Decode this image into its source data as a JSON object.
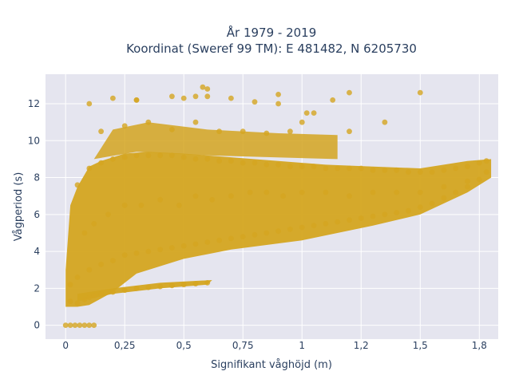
{
  "chart_data": {
    "type": "scatter",
    "title": "År 1979 - 2019",
    "subtitle": "Koordinat (Sweref 99 TM): E 481482, N 6205730",
    "xlabel": "Signifikant våghöjd (m)",
    "ylabel": "Vågperiod (s)",
    "xlim": [
      -0.085,
      1.83
    ],
    "ylim": [
      -0.75,
      13.6
    ],
    "x_ticks": [
      0,
      0.25,
      0.5,
      0.75,
      1,
      1.25,
      1.5,
      1.75
    ],
    "x_tick_labels": [
      "0",
      "0,25",
      "0,5",
      "0,75",
      "1",
      "1,2",
      "1,5",
      "1,8"
    ],
    "y_ticks": [
      0,
      2,
      4,
      6,
      8,
      10,
      12
    ],
    "y_tick_labels": [
      "0",
      "2",
      "4",
      "6",
      "8",
      "10",
      "12"
    ],
    "grid": true,
    "series": [
      {
        "color": "#d4a520",
        "x": [
          0.0,
          0.02,
          0.04,
          0.06,
          0.08,
          0.1,
          0.12,
          0.02,
          0.05,
          0.08,
          0.1,
          0.12,
          0.15,
          0.2,
          0.25,
          0.3,
          0.35,
          0.4,
          0.45,
          0.5,
          0.55,
          0.6,
          0.02,
          0.05,
          0.1,
          0.15,
          0.2,
          0.25,
          0.3,
          0.35,
          0.4,
          0.45,
          0.5,
          0.55,
          0.6,
          0.65,
          0.7,
          0.75,
          0.8,
          0.85,
          0.9,
          0.95,
          1.0,
          1.05,
          1.1,
          1.15,
          1.2,
          1.25,
          1.3,
          1.35,
          1.4,
          1.45,
          1.5,
          1.55,
          1.6,
          1.65,
          1.7,
          1.75,
          1.78,
          0.05,
          0.1,
          0.15,
          0.2,
          0.25,
          0.3,
          0.35,
          0.4,
          0.45,
          0.5,
          0.55,
          0.6,
          0.65,
          0.7,
          0.75,
          0.8,
          0.85,
          0.9,
          0.95,
          1.0,
          1.05,
          1.1,
          1.15,
          1.2,
          1.25,
          1.3,
          1.35,
          1.4,
          1.45,
          1.5,
          1.55,
          1.6,
          1.65,
          1.7,
          1.75,
          1.78,
          0.08,
          0.12,
          0.18,
          0.25,
          0.32,
          0.4,
          0.48,
          0.55,
          0.62,
          0.7,
          0.78,
          0.85,
          0.92,
          1.0,
          1.1,
          1.2,
          1.3,
          1.4,
          1.5,
          1.6,
          1.7,
          0.15,
          0.25,
          0.35,
          0.45,
          0.55,
          0.65,
          0.75,
          0.85,
          0.95,
          1.0,
          1.02,
          1.05,
          1.2,
          1.35,
          0.2,
          0.3,
          0.45,
          0.5,
          0.55,
          0.58,
          0.6,
          0.7,
          0.8,
          0.9,
          1.13,
          0.1,
          0.3,
          0.6,
          0.9,
          1.2,
          1.5
        ],
        "y": [
          0.0,
          0.0,
          0.0,
          0.0,
          0.0,
          0.0,
          0.0,
          1.3,
          1.2,
          1.4,
          1.5,
          1.6,
          1.7,
          1.8,
          1.9,
          2.0,
          2.05,
          2.1,
          2.15,
          2.2,
          2.25,
          2.3,
          2.2,
          2.6,
          3.0,
          3.3,
          3.5,
          3.8,
          3.9,
          4.0,
          4.1,
          4.2,
          4.3,
          4.4,
          4.5,
          4.6,
          4.7,
          4.8,
          4.9,
          5.0,
          5.1,
          5.2,
          5.3,
          5.4,
          5.5,
          5.6,
          5.7,
          5.8,
          5.9,
          6.0,
          6.1,
          6.2,
          6.4,
          6.6,
          6.9,
          7.2,
          7.5,
          7.9,
          8.3,
          7.6,
          8.5,
          8.8,
          9.0,
          9.1,
          9.2,
          9.2,
          9.2,
          9.2,
          9.1,
          9.0,
          9.0,
          8.9,
          8.9,
          8.8,
          8.8,
          8.7,
          8.7,
          8.6,
          8.6,
          8.6,
          8.5,
          8.5,
          8.5,
          8.5,
          8.4,
          8.4,
          8.4,
          8.3,
          8.3,
          8.3,
          8.4,
          8.5,
          8.6,
          8.8,
          8.9,
          5.0,
          5.5,
          6.0,
          6.5,
          6.5,
          6.8,
          6.5,
          7.0,
          6.8,
          7.0,
          7.2,
          7.2,
          7.0,
          7.2,
          7.2,
          7.0,
          7.2,
          7.2,
          7.2,
          7.5,
          7.8,
          10.5,
          10.8,
          11.0,
          10.6,
          11.0,
          10.5,
          10.5,
          10.4,
          10.5,
          11.0,
          11.5,
          11.5,
          10.5,
          11.0,
          12.3,
          12.2,
          12.4,
          12.3,
          12.4,
          12.9,
          12.8,
          12.3,
          12.1,
          12.0,
          12.2,
          12.0,
          12.2,
          12.4,
          12.5,
          12.6,
          12.6
        ]
      }
    ]
  }
}
